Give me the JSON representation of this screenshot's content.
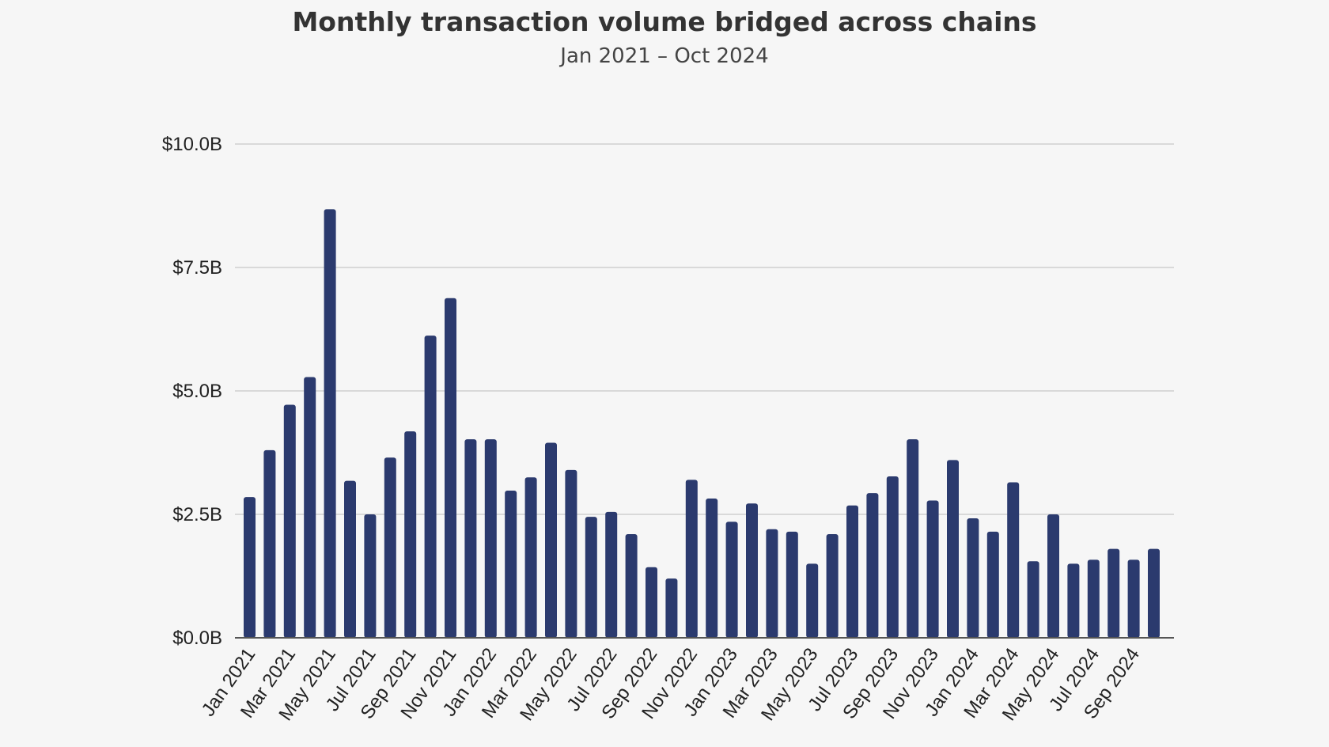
{
  "chart_data": {
    "type": "bar",
    "title": "Monthly transaction volume bridged across chains",
    "subtitle": "Jan 2021 – Oct 2024",
    "xlabel": "",
    "ylabel": "",
    "ylim": [
      0,
      10
    ],
    "grid": true,
    "yticks": [
      0,
      2.5,
      5,
      7.5,
      10
    ],
    "ytick_labels": [
      "$0.0B",
      "$2.5B",
      "$5.0B",
      "$7.5B",
      "$10.0B"
    ],
    "bar_color": "#2b3a6e",
    "categories": [
      "Jan 2021",
      "Feb 2021",
      "Mar 2021",
      "Apr 2021",
      "May 2021",
      "Jun 2021",
      "Jul 2021",
      "Aug 2021",
      "Sep 2021",
      "Oct 2021",
      "Nov 2021",
      "Dec 2021",
      "Jan 2022",
      "Feb 2022",
      "Mar 2022",
      "Apr 2022",
      "May 2022",
      "Jun 2022",
      "Jul 2022",
      "Aug 2022",
      "Sep 2022",
      "Oct 2022",
      "Nov 2022",
      "Dec 2022",
      "Jan 2023",
      "Feb 2023",
      "Mar 2023",
      "Apr 2023",
      "May 2023",
      "Jun 2023",
      "Jul 2023",
      "Aug 2023",
      "Sep 2023",
      "Oct 2023",
      "Nov 2023",
      "Dec 2023",
      "Jan 2024",
      "Feb 2024",
      "Mar 2024",
      "Apr 2024",
      "May 2024",
      "Jun 2024",
      "Jul 2024",
      "Aug 2024",
      "Sep 2024",
      "Oct 2024"
    ],
    "xtick_labels": [
      "Jan 2021",
      "Mar 2021",
      "May 2021",
      "Jul 2021",
      "Sep 2021",
      "Nov 2021",
      "Jan 2022",
      "Mar 2022",
      "May 2022",
      "Jul 2022",
      "Sep 2022",
      "Nov 2022",
      "Jan 2023",
      "Mar 2023",
      "May 2023",
      "Jul 2023",
      "Sep 2023",
      "Nov 2023",
      "Jan 2024",
      "Mar 2024",
      "May 2024",
      "Jul 2024",
      "Sep 2024"
    ],
    "values": [
      2.85,
      3.8,
      4.72,
      5.28,
      8.68,
      3.18,
      2.5,
      3.65,
      4.18,
      6.12,
      6.88,
      4.02,
      4.02,
      2.98,
      3.25,
      3.95,
      3.4,
      2.45,
      2.55,
      2.1,
      1.43,
      1.2,
      3.2,
      2.82,
      2.35,
      2.72,
      2.2,
      2.15,
      1.5,
      2.1,
      2.68,
      2.93,
      3.27,
      4.02,
      2.78,
      3.6,
      2.42,
      2.15,
      3.15,
      1.55,
      2.5,
      1.5,
      1.58,
      1.8,
      1.58,
      1.8
    ]
  }
}
